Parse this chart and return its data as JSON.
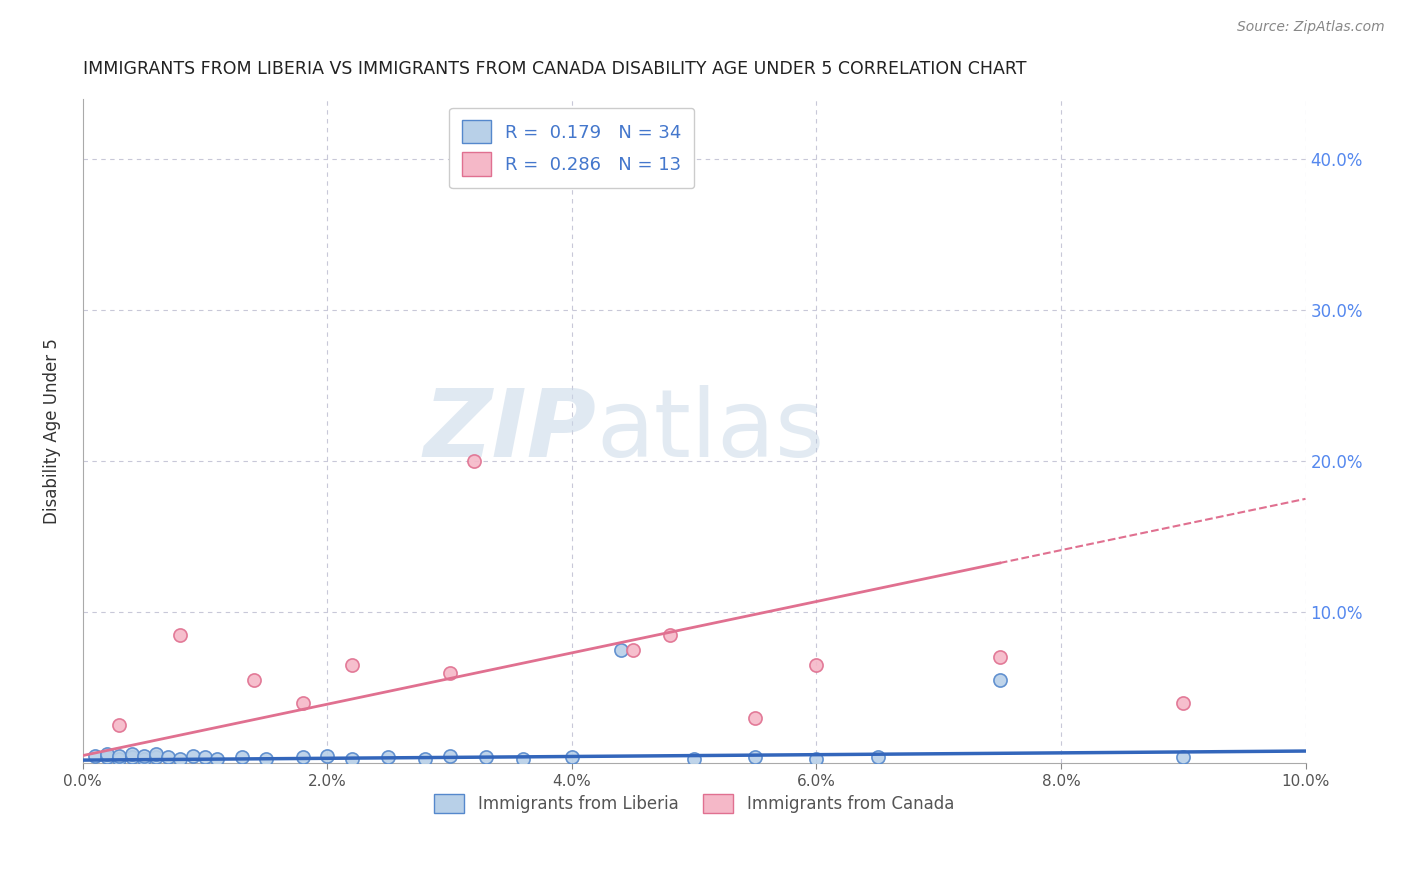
{
  "title": "IMMIGRANTS FROM LIBERIA VS IMMIGRANTS FROM CANADA DISABILITY AGE UNDER 5 CORRELATION CHART",
  "source": "Source: ZipAtlas.com",
  "ylabel": "Disability Age Under 5",
  "xlabel_liberia": "Immigrants from Liberia",
  "xlabel_canada": "Immigrants from Canada",
  "xlim": [
    0.0,
    0.1
  ],
  "ylim": [
    0.0,
    0.44
  ],
  "yticks": [
    0.0,
    0.1,
    0.2,
    0.3,
    0.4
  ],
  "ytick_labels": [
    "",
    "10.0%",
    "20.0%",
    "30.0%",
    "40.0%"
  ],
  "xticks": [
    0.0,
    0.02,
    0.04,
    0.06,
    0.08,
    0.1
  ],
  "xtick_labels": [
    "0.0%",
    "2.0%",
    "4.0%",
    "6.0%",
    "8.0%",
    "10.0%"
  ],
  "liberia_color": "#b8d0e8",
  "canada_color": "#f5b8c8",
  "liberia_edge": "#5588cc",
  "canada_edge": "#e07090",
  "trend_liberia_color": "#3366bb",
  "trend_canada_color": "#e07090",
  "R_liberia": 0.179,
  "N_liberia": 34,
  "R_canada": 0.286,
  "N_canada": 13,
  "legend_text_color": "#4477cc",
  "watermark_zip": "ZIP",
  "watermark_atlas": "atlas",
  "background_color": "#ffffff",
  "grid_color": "#c8c8d8",
  "liberia_x": [
    0.001,
    0.002,
    0.002,
    0.003,
    0.003,
    0.004,
    0.004,
    0.005,
    0.005,
    0.006,
    0.006,
    0.007,
    0.008,
    0.009,
    0.01,
    0.011,
    0.013,
    0.015,
    0.018,
    0.02,
    0.022,
    0.025,
    0.028,
    0.03,
    0.033,
    0.036,
    0.04,
    0.044,
    0.05,
    0.055,
    0.06,
    0.065,
    0.075,
    0.09
  ],
  "liberia_y": [
    0.005,
    0.004,
    0.006,
    0.003,
    0.005,
    0.004,
    0.006,
    0.003,
    0.005,
    0.004,
    0.006,
    0.004,
    0.003,
    0.005,
    0.004,
    0.003,
    0.004,
    0.003,
    0.004,
    0.005,
    0.003,
    0.004,
    0.003,
    0.005,
    0.004,
    0.003,
    0.004,
    0.075,
    0.003,
    0.004,
    0.003,
    0.004,
    0.055,
    0.004
  ],
  "canada_x": [
    0.003,
    0.008,
    0.014,
    0.018,
    0.022,
    0.03,
    0.032,
    0.045,
    0.048,
    0.055,
    0.06,
    0.075,
    0.09
  ],
  "canada_y": [
    0.025,
    0.085,
    0.055,
    0.04,
    0.065,
    0.06,
    0.2,
    0.075,
    0.085,
    0.03,
    0.065,
    0.07,
    0.04
  ],
  "trend_liberia_x0": 0.0,
  "trend_liberia_y0": 0.002,
  "trend_liberia_x1": 0.1,
  "trend_liberia_y1": 0.008,
  "trend_canada_x0": 0.0,
  "trend_canada_y0": 0.005,
  "trend_canada_x1": 0.1,
  "trend_canada_y1": 0.175
}
